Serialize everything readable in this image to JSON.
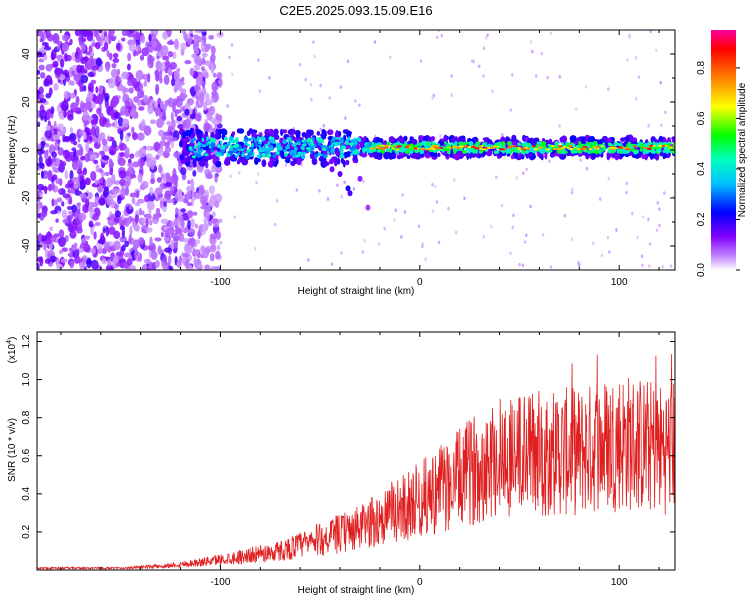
{
  "figure": {
    "title": "C2E5.2025.093.15.09.E16"
  },
  "chart_data": [
    {
      "type": "heatmap",
      "xlabel": "Height of straight line (km)",
      "ylabel": "Frequency (Hz)",
      "xlim": [
        -192,
        128
      ],
      "ylim": [
        -50,
        50
      ],
      "x_ticks": [
        -100,
        0,
        100
      ],
      "y_ticks": [
        -40,
        -20,
        0,
        20,
        40
      ],
      "colorbar": {
        "label": "Normalized spectral amplitude",
        "range": [
          0,
          0.95
        ],
        "ticks": [
          "0.0",
          "0.2",
          "0.4",
          "0.6",
          "0.8"
        ],
        "colors": [
          "#ffffff",
          "#a020f0",
          "#0000ff",
          "#00ffff",
          "#00ff00",
          "#ffff00",
          "#ff8000",
          "#ff0000",
          "#ff00ff"
        ]
      },
      "features": {
        "noise_region_x": [
          -192,
          -100
        ],
        "signal_band_start_x": -120,
        "signal_band_center_hz": 1,
        "strong_signal_x": [
          -25,
          128
        ]
      }
    },
    {
      "type": "line",
      "xlabel": "Height of straight line (km)",
      "ylabel": "SNR (10 * v/v)",
      "y_scale_label": "(x10",
      "y_scale_exp": "4",
      "xlim": [
        -192,
        128
      ],
      "ylim": [
        0,
        1.25
      ],
      "x_ticks": [
        -100,
        0,
        100
      ],
      "y_ticks": [
        "0.2",
        "0.4",
        "0.6",
        "0.8",
        "1.0",
        "1.2"
      ],
      "color": "#e02020",
      "series": [
        {
          "x": [
            -192,
            -170,
            -150,
            -130,
            -110,
            -90,
            -70,
            -50,
            -30,
            -10,
            10,
            20,
            30,
            40,
            60,
            80,
            100,
            110,
            120,
            128
          ],
          "values": [
            0.01,
            0.01,
            0.01,
            0.02,
            0.04,
            0.07,
            0.1,
            0.16,
            0.22,
            0.32,
            0.42,
            0.48,
            0.55,
            0.6,
            0.62,
            0.62,
            0.68,
            0.66,
            0.64,
            0.65
          ]
        }
      ]
    }
  ]
}
